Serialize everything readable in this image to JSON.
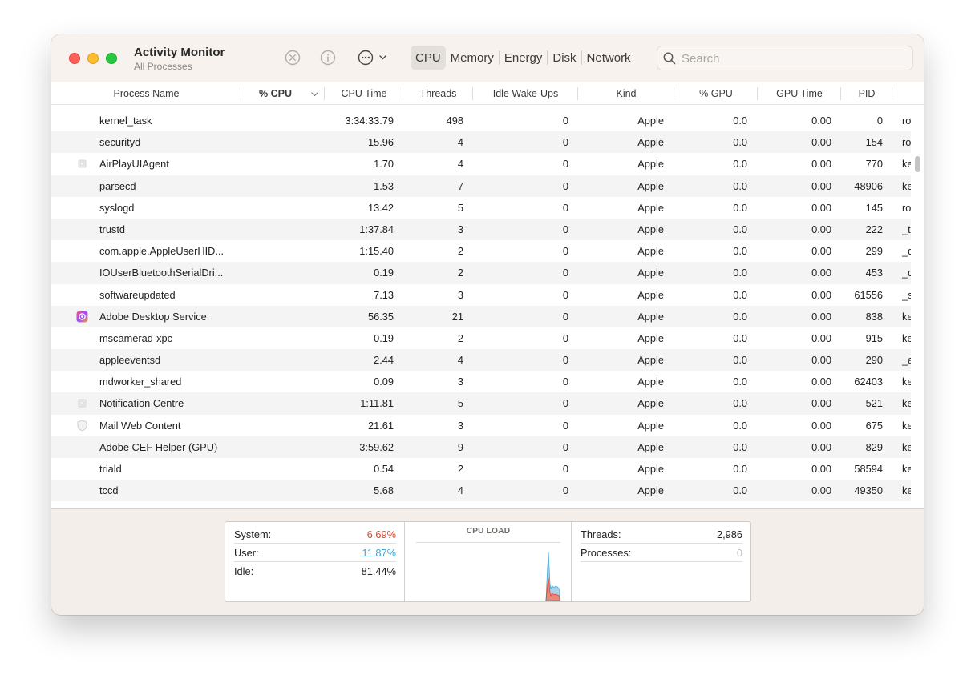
{
  "window": {
    "title": "Activity Monitor",
    "subtitle": "All Processes"
  },
  "toolbar": {
    "stop_icon": "xmark-circle-icon",
    "info_icon": "info-circle-icon",
    "more_icon": "ellipsis-circle-icon",
    "tabs": [
      {
        "label": "CPU",
        "active": true
      },
      {
        "label": "Memory",
        "active": false
      },
      {
        "label": "Energy",
        "active": false
      },
      {
        "label": "Disk",
        "active": false
      },
      {
        "label": "Network",
        "active": false
      }
    ],
    "search_placeholder": "Search"
  },
  "table": {
    "columns": {
      "name": "Process Name",
      "cpu": "% CPU",
      "cpu_time": "CPU Time",
      "threads": "Threads",
      "idle": "Idle Wake-Ups",
      "kind": "Kind",
      "gpu": "% GPU",
      "gpu_time": "GPU Time",
      "pid": "PID"
    },
    "rows": [
      {
        "name": "kernel_task",
        "cpu_time": "3:34:33.79",
        "threads": "498",
        "idle": "0",
        "kind": "Apple",
        "gpu": "0.0",
        "gpu_time": "0.00",
        "pid": "0",
        "user": "ro",
        "icon": ""
      },
      {
        "name": "securityd",
        "cpu_time": "15.96",
        "threads": "4",
        "idle": "0",
        "kind": "Apple",
        "gpu": "0.0",
        "gpu_time": "0.00",
        "pid": "154",
        "user": "ro",
        "icon": ""
      },
      {
        "name": "AirPlayUIAgent",
        "cpu_time": "1.70",
        "threads": "4",
        "idle": "0",
        "kind": "Apple",
        "gpu": "0.0",
        "gpu_time": "0.00",
        "pid": "770",
        "user": "ke",
        "icon": "generic-app-icon"
      },
      {
        "name": "parsecd",
        "cpu_time": "1.53",
        "threads": "7",
        "idle": "0",
        "kind": "Apple",
        "gpu": "0.0",
        "gpu_time": "0.00",
        "pid": "48906",
        "user": "ke",
        "icon": ""
      },
      {
        "name": "syslogd",
        "cpu_time": "13.42",
        "threads": "5",
        "idle": "0",
        "kind": "Apple",
        "gpu": "0.0",
        "gpu_time": "0.00",
        "pid": "145",
        "user": "ro",
        "icon": ""
      },
      {
        "name": "trustd",
        "cpu_time": "1:37.84",
        "threads": "3",
        "idle": "0",
        "kind": "Apple",
        "gpu": "0.0",
        "gpu_time": "0.00",
        "pid": "222",
        "user": "_t",
        "icon": ""
      },
      {
        "name": "com.apple.AppleUserHID...",
        "cpu_time": "1:15.40",
        "threads": "2",
        "idle": "0",
        "kind": "Apple",
        "gpu": "0.0",
        "gpu_time": "0.00",
        "pid": "299",
        "user": "_d",
        "icon": ""
      },
      {
        "name": "IOUserBluetoothSerialDri...",
        "cpu_time": "0.19",
        "threads": "2",
        "idle": "0",
        "kind": "Apple",
        "gpu": "0.0",
        "gpu_time": "0.00",
        "pid": "453",
        "user": "_d",
        "icon": ""
      },
      {
        "name": "softwareupdated",
        "cpu_time": "7.13",
        "threads": "3",
        "idle": "0",
        "kind": "Apple",
        "gpu": "0.0",
        "gpu_time": "0.00",
        "pid": "61556",
        "user": "_s",
        "icon": ""
      },
      {
        "name": "Adobe Desktop Service",
        "cpu_time": "56.35",
        "threads": "21",
        "idle": "0",
        "kind": "Apple",
        "gpu": "0.0",
        "gpu_time": "0.00",
        "pid": "838",
        "user": "ke",
        "icon": "adobe-creative-cloud-icon"
      },
      {
        "name": "mscamerad-xpc",
        "cpu_time": "0.19",
        "threads": "2",
        "idle": "0",
        "kind": "Apple",
        "gpu": "0.0",
        "gpu_time": "0.00",
        "pid": "915",
        "user": "ke",
        "icon": ""
      },
      {
        "name": "appleeventsd",
        "cpu_time": "2.44",
        "threads": "4",
        "idle": "0",
        "kind": "Apple",
        "gpu": "0.0",
        "gpu_time": "0.00",
        "pid": "290",
        "user": "_a",
        "icon": ""
      },
      {
        "name": "mdworker_shared",
        "cpu_time": "0.09",
        "threads": "3",
        "idle": "0",
        "kind": "Apple",
        "gpu": "0.0",
        "gpu_time": "0.00",
        "pid": "62403",
        "user": "ke",
        "icon": ""
      },
      {
        "name": "Notification Centre",
        "cpu_time": "1:11.81",
        "threads": "5",
        "idle": "0",
        "kind": "Apple",
        "gpu": "0.0",
        "gpu_time": "0.00",
        "pid": "521",
        "user": "ke",
        "icon": "generic-app-icon"
      },
      {
        "name": "Mail Web Content",
        "cpu_time": "21.61",
        "threads": "3",
        "idle": "0",
        "kind": "Apple",
        "gpu": "0.0",
        "gpu_time": "0.00",
        "pid": "675",
        "user": "ke",
        "icon": "shield-icon"
      },
      {
        "name": "Adobe CEF Helper (GPU)",
        "cpu_time": "3:59.62",
        "threads": "9",
        "idle": "0",
        "kind": "Apple",
        "gpu": "0.0",
        "gpu_time": "0.00",
        "pid": "829",
        "user": "ke",
        "icon": ""
      },
      {
        "name": "triald",
        "cpu_time": "0.54",
        "threads": "2",
        "idle": "0",
        "kind": "Apple",
        "gpu": "0.0",
        "gpu_time": "0.00",
        "pid": "58594",
        "user": "ke",
        "icon": ""
      },
      {
        "name": "tccd",
        "cpu_time": "5.68",
        "threads": "4",
        "idle": "0",
        "kind": "Apple",
        "gpu": "0.0",
        "gpu_time": "0.00",
        "pid": "49350",
        "user": "ke",
        "icon": ""
      }
    ]
  },
  "stats": {
    "system_label": "System:",
    "system_value": "6.69%",
    "user_label": "User:",
    "user_value": "11.87%",
    "idle_label": "Idle:",
    "idle_value": "81.44%",
    "load_title": "CPU LOAD",
    "threads_label": "Threads:",
    "threads_value": "2,986",
    "processes_label": "Processes:",
    "processes_value": "0",
    "colors": {
      "system": "#e0452f",
      "user": "#3fa7d6"
    }
  }
}
